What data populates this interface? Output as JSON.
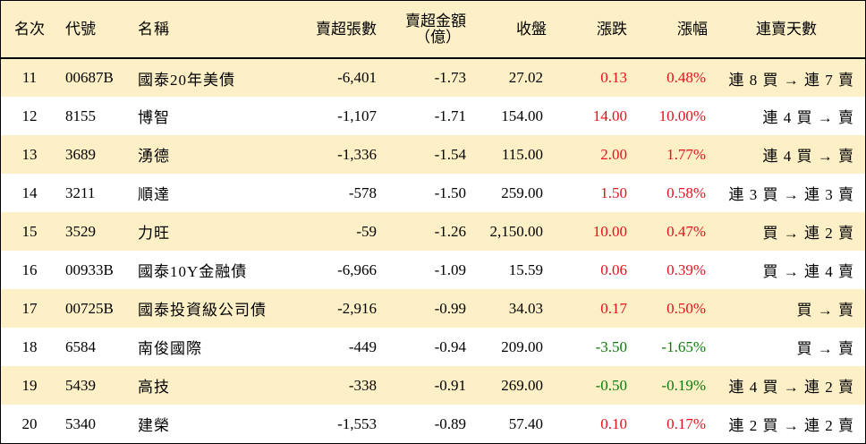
{
  "headers": {
    "rank": "名次",
    "code": "代號",
    "name": "名稱",
    "net_sell_lots": "賣超張數",
    "net_sell_amount_line1": "賣超金額",
    "net_sell_amount_line2": "（億）",
    "close": "收盤",
    "change": "漲跌",
    "change_pct": "漲幅",
    "streak": "連賣天數"
  },
  "rows": [
    {
      "rank": "11",
      "code": "00687B",
      "name": "國泰20年美債",
      "lots": "-6,401",
      "amount": "-1.73",
      "close": "27.02",
      "change": "0.13",
      "pct": "0.48%",
      "dir": "up",
      "streak": "連 8 買 → 連 7 賣"
    },
    {
      "rank": "12",
      "code": "8155",
      "name": "博智",
      "lots": "-1,107",
      "amount": "-1.71",
      "close": "154.00",
      "change": "14.00",
      "pct": "10.00%",
      "dir": "up",
      "streak": "連 4 買 → 賣"
    },
    {
      "rank": "13",
      "code": "3689",
      "name": "湧德",
      "lots": "-1,336",
      "amount": "-1.54",
      "close": "115.00",
      "change": "2.00",
      "pct": "1.77%",
      "dir": "up",
      "streak": "連 4 買 → 賣"
    },
    {
      "rank": "14",
      "code": "3211",
      "name": "順達",
      "lots": "-578",
      "amount": "-1.50",
      "close": "259.00",
      "change": "1.50",
      "pct": "0.58%",
      "dir": "up",
      "streak": "連 3 買 → 連 3 賣"
    },
    {
      "rank": "15",
      "code": "3529",
      "name": "力旺",
      "lots": "-59",
      "amount": "-1.26",
      "close": "2,150.00",
      "change": "10.00",
      "pct": "0.47%",
      "dir": "up",
      "streak": "買 → 連 2 賣"
    },
    {
      "rank": "16",
      "code": "00933B",
      "name": "國泰10Y金融債",
      "lots": "-6,966",
      "amount": "-1.09",
      "close": "15.59",
      "change": "0.06",
      "pct": "0.39%",
      "dir": "up",
      "streak": "買 → 連 4 賣"
    },
    {
      "rank": "17",
      "code": "00725B",
      "name": "國泰投資級公司債",
      "lots": "-2,916",
      "amount": "-0.99",
      "close": "34.03",
      "change": "0.17",
      "pct": "0.50%",
      "dir": "up",
      "streak": "買 → 賣"
    },
    {
      "rank": "18",
      "code": "6584",
      "name": "南俊國際",
      "lots": "-449",
      "amount": "-0.94",
      "close": "209.00",
      "change": "-3.50",
      "pct": "-1.65%",
      "dir": "down",
      "streak": "買 → 賣"
    },
    {
      "rank": "19",
      "code": "5439",
      "name": "高技",
      "lots": "-338",
      "amount": "-0.91",
      "close": "269.00",
      "change": "-0.50",
      "pct": "-0.19%",
      "dir": "down",
      "streak": "連 4 買 → 連 2 賣"
    },
    {
      "rank": "20",
      "code": "5340",
      "name": "建榮",
      "lots": "-1,553",
      "amount": "-0.89",
      "close": "57.40",
      "change": "0.10",
      "pct": "0.17%",
      "dir": "up",
      "streak": "連 2 買 → 連 2 賣"
    }
  ],
  "colors": {
    "header_bg": "#fdefc6",
    "stripe_bg": "#fdefc6",
    "up": "#e8101c",
    "down": "#0b7a0b"
  }
}
